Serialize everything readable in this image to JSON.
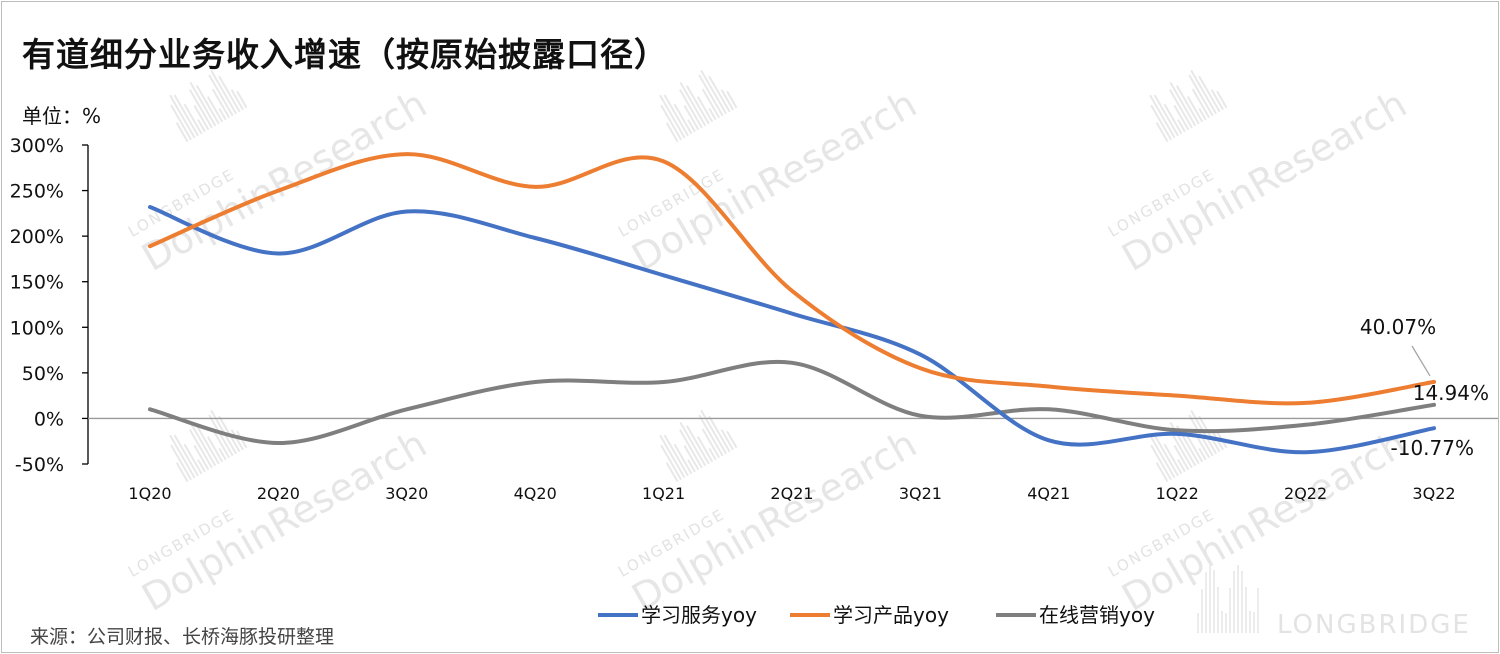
{
  "title": "有道细分业务收入增速（按原始披露口径）",
  "unit_label": "单位：%",
  "source": "来源：公司财报、长桥海豚投研整理",
  "watermark": {
    "brand_small": "LONGBRIDGE",
    "brand_large": "DolphinResearch",
    "footer_logo": "LONGBRIDGE"
  },
  "colors": {
    "study_services": "#4472C4",
    "study_products": "#ED7D31",
    "online_marketing": "#7F7F7F",
    "axis": "#000000",
    "zero_line": "#9a9a9a"
  },
  "chart_data": {
    "type": "line",
    "title": "有道细分业务收入增速（按原始披露口径）",
    "xlabel": "",
    "ylabel": "单位：%",
    "ylim": [
      -50,
      300
    ],
    "y_ticks": [
      -50,
      0,
      50,
      100,
      150,
      200,
      250,
      300
    ],
    "y_tick_labels": [
      "-50%",
      "0%",
      "50%",
      "100%",
      "150%",
      "200%",
      "250%",
      "300%"
    ],
    "categories": [
      "1Q20",
      "2Q20",
      "3Q20",
      "4Q20",
      "1Q21",
      "2Q21",
      "3Q21",
      "4Q21",
      "1Q22",
      "2Q22",
      "3Q22"
    ],
    "series": [
      {
        "name": "学习服务yoy",
        "color_key": "study_services",
        "values": [
          232,
          181,
          227,
          198,
          157,
          115,
          70,
          -24,
          -17,
          -37,
          -10.77
        ]
      },
      {
        "name": "学习产品yoy",
        "color_key": "study_products",
        "values": [
          189,
          250,
          290,
          254,
          282,
          140,
          55,
          35,
          25,
          17,
          40.07
        ]
      },
      {
        "name": "在线营销yoy",
        "color_key": "online_marketing",
        "values": [
          10,
          -27,
          10,
          40,
          40,
          61,
          3,
          10,
          -13,
          -7,
          14.94
        ]
      }
    ],
    "data_labels": [
      {
        "series": 1,
        "index": 10,
        "text": "40.07%"
      },
      {
        "series": 2,
        "index": 10,
        "text": "14.94%"
      },
      {
        "series": 0,
        "index": 10,
        "text": "-10.77%"
      }
    ],
    "legend": {
      "position": "bottom-center",
      "items": [
        "学习服务yoy",
        "学习产品yoy",
        "在线营销yoy"
      ]
    },
    "grid": false
  }
}
